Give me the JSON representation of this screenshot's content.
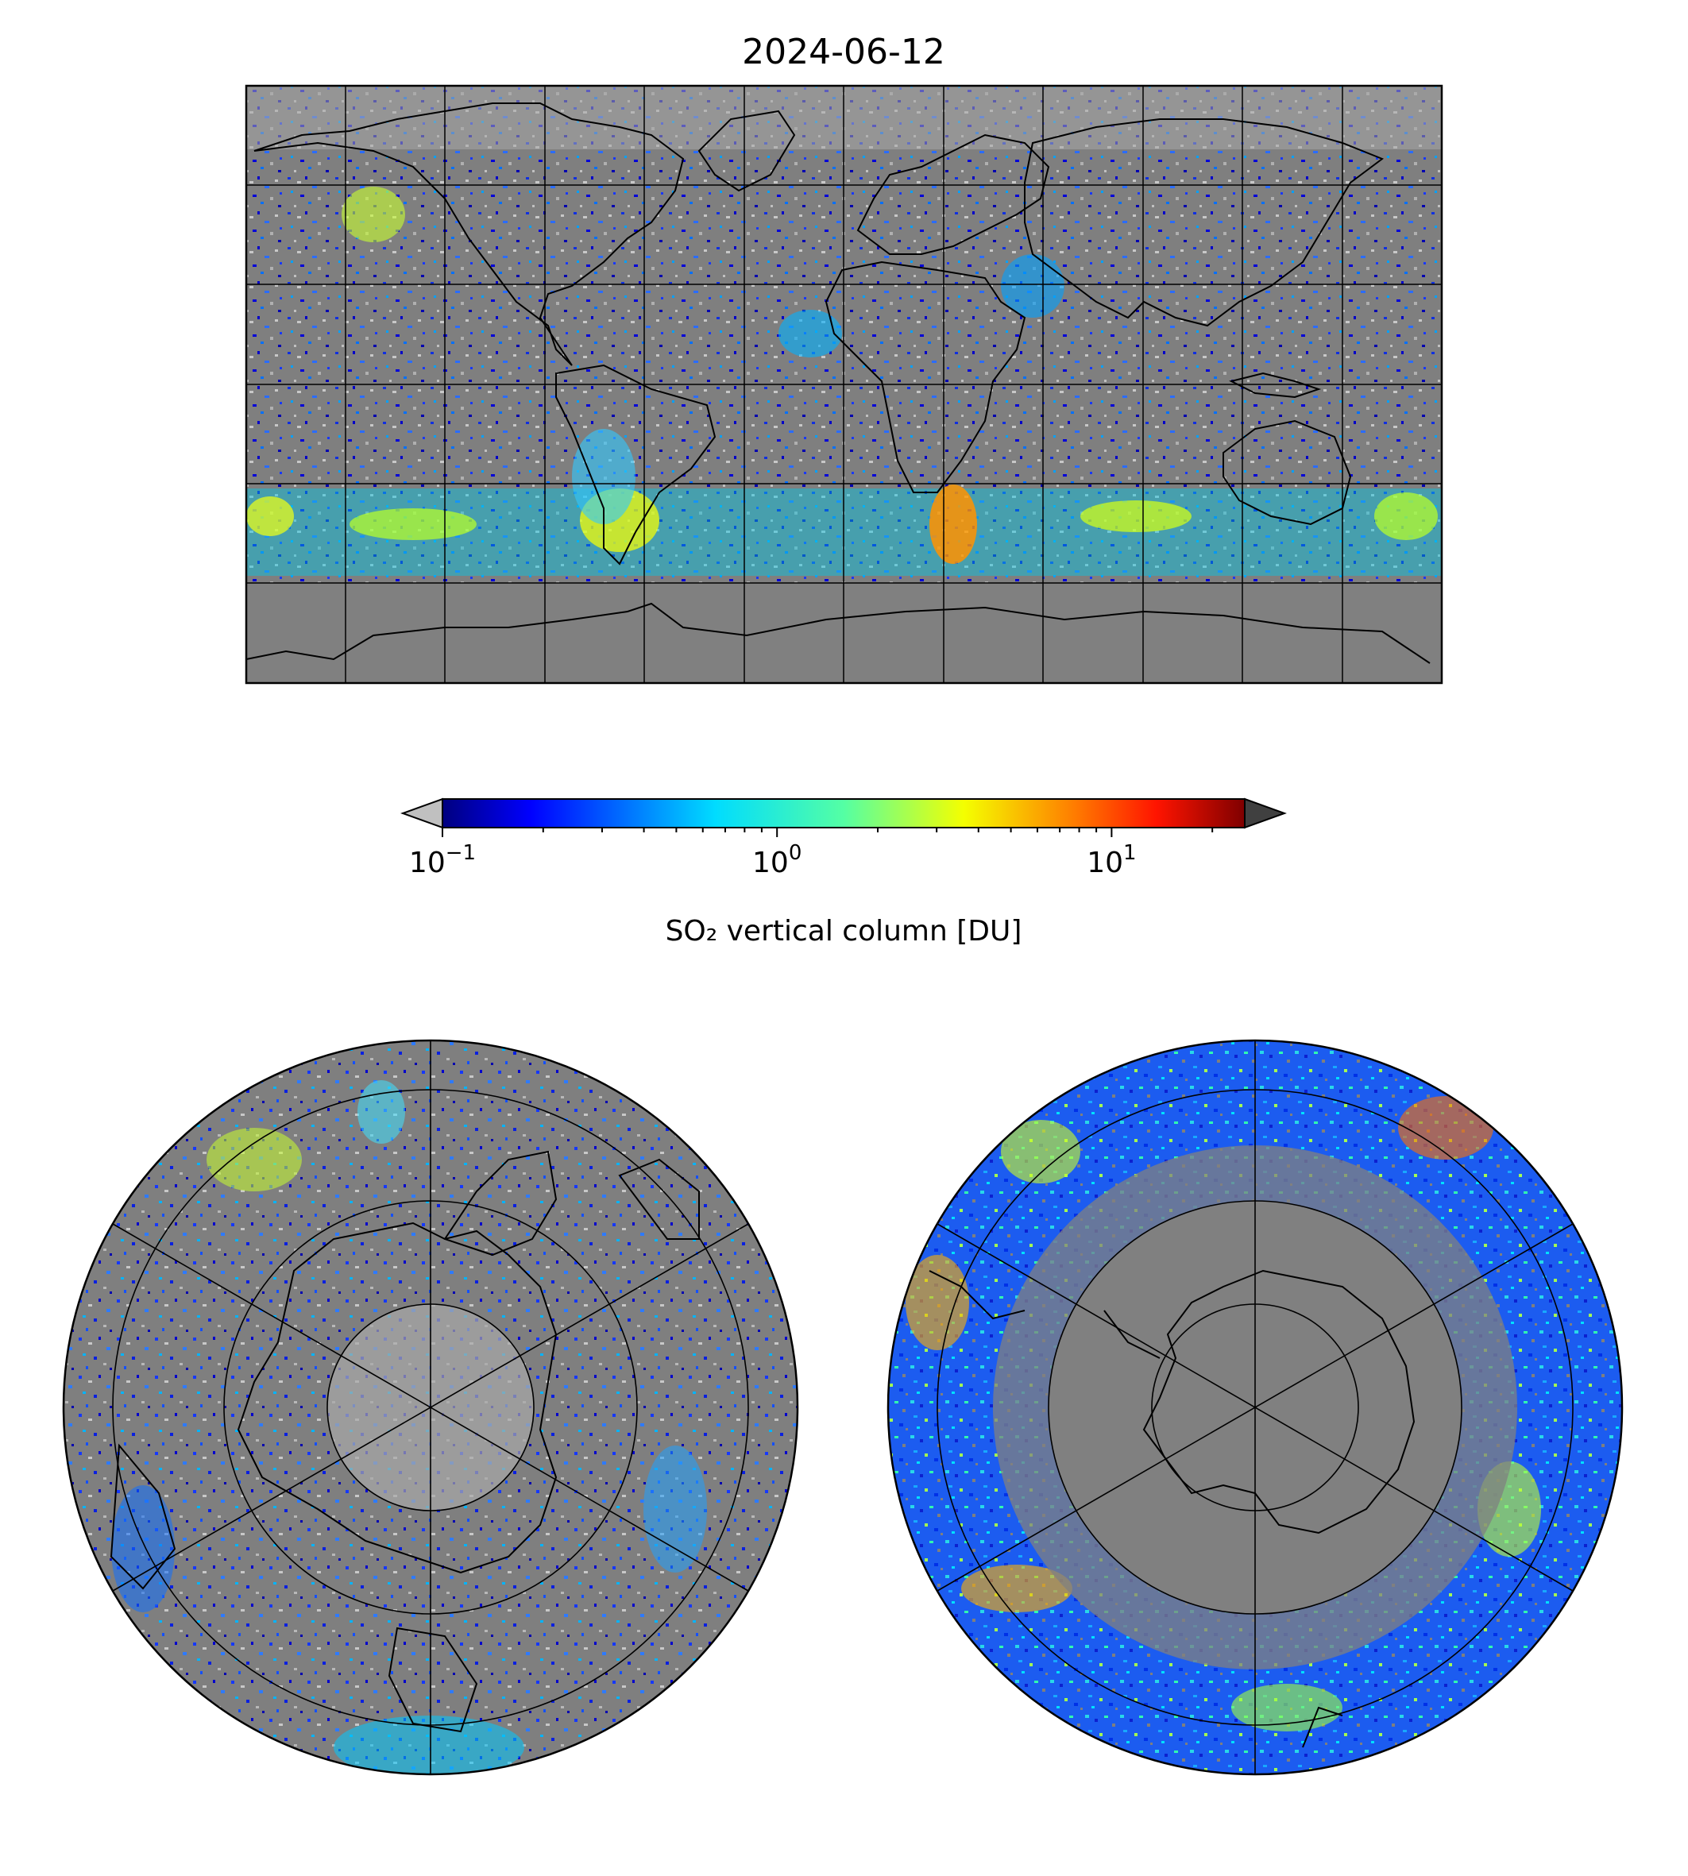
{
  "title": "2024-06-12",
  "colorbar": {
    "label": "SO₂ vertical column [DU]",
    "scale": "log",
    "range": [
      0.1,
      25
    ],
    "ticks": [
      {
        "value": 0.1,
        "base": "10",
        "exponent": "−1"
      },
      {
        "value": 1,
        "base": "10",
        "exponent": "0"
      },
      {
        "value": 10,
        "base": "10",
        "exponent": "1"
      }
    ],
    "extend_min_color": "#c0c0c0",
    "extend_max_color": "#404040",
    "colormap": "jet"
  },
  "colors": {
    "background_gray": "#808080",
    "light_gray": "#c0c0c0",
    "coastline": "#000000",
    "gridline": "#000000"
  },
  "maps": [
    {
      "projection": "plate-carree",
      "extent": [
        -180,
        180,
        -90,
        90
      ],
      "grid_spacing_lon": 30,
      "grid_spacing_lat": 30
    },
    {
      "projection": "north-polar-stereographic",
      "hemisphere": "north"
    },
    {
      "projection": "south-polar-stereographic",
      "hemisphere": "south"
    }
  ]
}
